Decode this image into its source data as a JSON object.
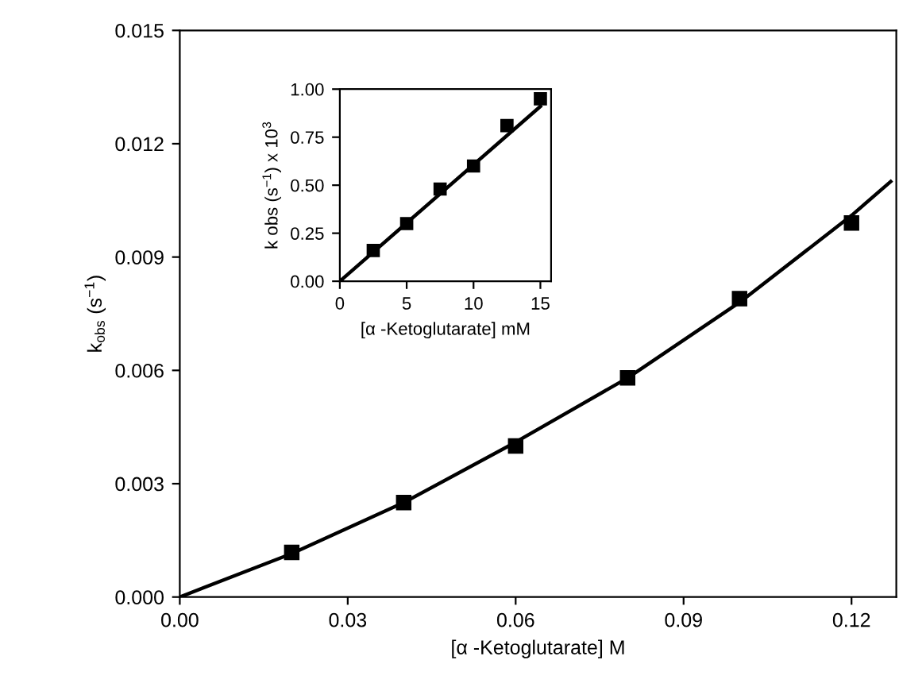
{
  "chart_data": [
    {
      "type": "scatter",
      "xlabel": "[α -Ketoglutarate] M",
      "ylabel": "k$_{obs}$ (s$^{−1}$)",
      "marker": "square",
      "grid": false,
      "legend": false,
      "xlim": [
        0,
        0.128
      ],
      "ylim": [
        0,
        0.015
      ],
      "xticks": [
        {
          "value": 0,
          "label": "0.00"
        },
        {
          "value": 0.03,
          "label": "0.03"
        },
        {
          "value": 0.06,
          "label": "0.06"
        },
        {
          "value": 0.09,
          "label": "0.09"
        },
        {
          "value": 0.12,
          "label": "0.12"
        }
      ],
      "yticks": [
        {
          "value": 0,
          "label": "0.000"
        },
        {
          "value": 0.003,
          "label": "0.003"
        },
        {
          "value": 0.006,
          "label": "0.006"
        },
        {
          "value": 0.009,
          "label": "0.009"
        },
        {
          "value": 0.012,
          "label": "0.012"
        },
        {
          "value": 0.015,
          "label": "0.015"
        }
      ],
      "series": [
        {
          "color": "#000000",
          "x": [
            0.02,
            0.04,
            0.06,
            0.08,
            0.1,
            0.12
          ],
          "values": [
            0.00118,
            0.0025,
            0.004,
            0.0058,
            0.0079,
            0.0099
          ]
        },
        {
          "type": "line",
          "color": "#000000",
          "marker": "none",
          "x": [
            0,
            0.02,
            0.04,
            0.06,
            0.08,
            0.1,
            0.12,
            0.127
          ],
          "values": [
            0,
            0.00115,
            0.0025,
            0.0041,
            0.0058,
            0.0078,
            0.0101,
            0.011
          ]
        }
      ]
    },
    {
      "type": "scatter",
      "xlabel": "[α -Ketoglutarate] mM",
      "ylabel": "k obs (s$^{−1}$) x 10$^{3}$",
      "marker": "square",
      "grid": false,
      "legend": false,
      "xlim": [
        0,
        15.8
      ],
      "ylim": [
        0,
        1.0
      ],
      "xticks": [
        0,
        5,
        10,
        15
      ],
      "yticks": [
        {
          "value": 0,
          "label": "0.00"
        },
        {
          "value": 0.25,
          "label": "0.25"
        },
        {
          "value": 0.5,
          "label": "0.50"
        },
        {
          "value": 0.75,
          "label": "0.75"
        },
        {
          "value": 1.0,
          "label": "1.00"
        }
      ],
      "series": [
        {
          "color": "#000000",
          "x": [
            2.5,
            5,
            7.5,
            10,
            12.5,
            15
          ],
          "values": [
            0.16,
            0.3,
            0.48,
            0.6,
            0.81,
            0.95
          ]
        },
        {
          "type": "line",
          "color": "#000000",
          "marker": "none",
          "x": [
            0,
            15
          ],
          "values": [
            0,
            0.91
          ]
        }
      ]
    }
  ]
}
